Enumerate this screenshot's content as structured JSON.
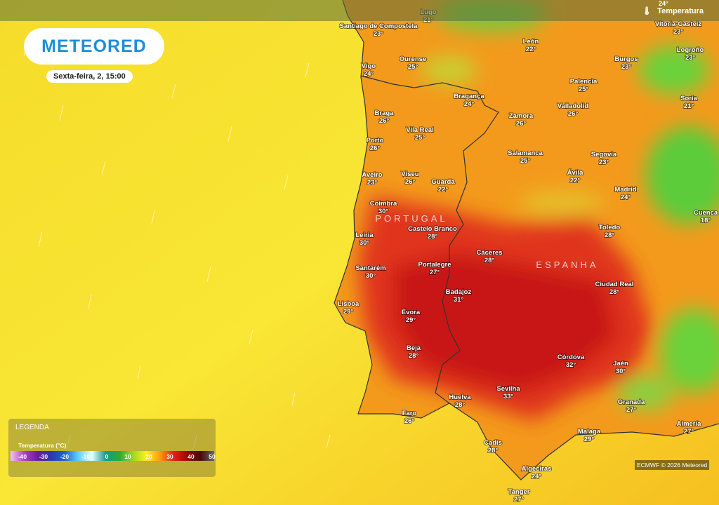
{
  "header": {
    "logo": "METEORED",
    "date": "Sexta-feira, 2, 15:00",
    "layer": "Temperatura",
    "top_edge_label": "24°"
  },
  "countries": [
    "PORTUGAL",
    "ESPANHA"
  ],
  "cities": [
    {
      "name": "Santiago de Compostela",
      "temp": "23°"
    },
    {
      "name": "Lugo",
      "temp": "21°"
    },
    {
      "name": "Vigo",
      "temp": "24°"
    },
    {
      "name": "Ourense",
      "temp": "25°"
    },
    {
      "name": "León",
      "temp": "22°"
    },
    {
      "name": "Burgos",
      "temp": "23°"
    },
    {
      "name": "Vitoria-Gasteiz",
      "temp": "23°"
    },
    {
      "name": "Logroño",
      "temp": "23°"
    },
    {
      "name": "Bragança",
      "temp": "24°"
    },
    {
      "name": "Palencia",
      "temp": "25°"
    },
    {
      "name": "Valladolid",
      "temp": "26°"
    },
    {
      "name": "Soria",
      "temp": "21°"
    },
    {
      "name": "Braga",
      "temp": "26°"
    },
    {
      "name": "Zamora",
      "temp": "26°"
    },
    {
      "name": "Vila Real",
      "temp": "25°"
    },
    {
      "name": "Porto",
      "temp": "26°"
    },
    {
      "name": "Salamanca",
      "temp": "25°"
    },
    {
      "name": "Segovia",
      "temp": "23°"
    },
    {
      "name": "Aveiro",
      "temp": "23°"
    },
    {
      "name": "Viseu",
      "temp": "26°"
    },
    {
      "name": "Guarda",
      "temp": "22°"
    },
    {
      "name": "Ávila",
      "temp": "22°"
    },
    {
      "name": "Madrid",
      "temp": "24°"
    },
    {
      "name": "Cuenca",
      "temp": "18°"
    },
    {
      "name": "Coimbra",
      "temp": "30°"
    },
    {
      "name": "Castelo Branco",
      "temp": "28°"
    },
    {
      "name": "Leiria",
      "temp": "30°"
    },
    {
      "name": "Toledo",
      "temp": "28°"
    },
    {
      "name": "Cáceres",
      "temp": "28°"
    },
    {
      "name": "Santarém",
      "temp": "30°"
    },
    {
      "name": "Portalegre",
      "temp": "27°"
    },
    {
      "name": "Badajoz",
      "temp": "31°"
    },
    {
      "name": "Ciudad Real",
      "temp": "28°"
    },
    {
      "name": "Lisboa",
      "temp": "29°"
    },
    {
      "name": "Évora",
      "temp": "29°"
    },
    {
      "name": "Beja",
      "temp": "28°"
    },
    {
      "name": "Córdova",
      "temp": "32°"
    },
    {
      "name": "Jaén",
      "temp": "30°"
    },
    {
      "name": "Sevilha",
      "temp": "33°"
    },
    {
      "name": "Huelva",
      "temp": "28°"
    },
    {
      "name": "Granada",
      "temp": "27°"
    },
    {
      "name": "Faro",
      "temp": "26°"
    },
    {
      "name": "Almería",
      "temp": "27°"
    },
    {
      "name": "Malaga",
      "temp": "29°"
    },
    {
      "name": "Cadis",
      "temp": "28°"
    },
    {
      "name": "Algeciras",
      "temp": "24°"
    },
    {
      "name": "Tanger",
      "temp": "27°"
    }
  ],
  "legend": {
    "title": "LEGENDA",
    "subtitle": "Temperatura (°C)",
    "ticks": [
      -40,
      -30,
      -20,
      -10,
      0,
      10,
      20,
      30,
      40,
      50
    ]
  },
  "credit": "ECMWF © 2026 Meteored"
}
